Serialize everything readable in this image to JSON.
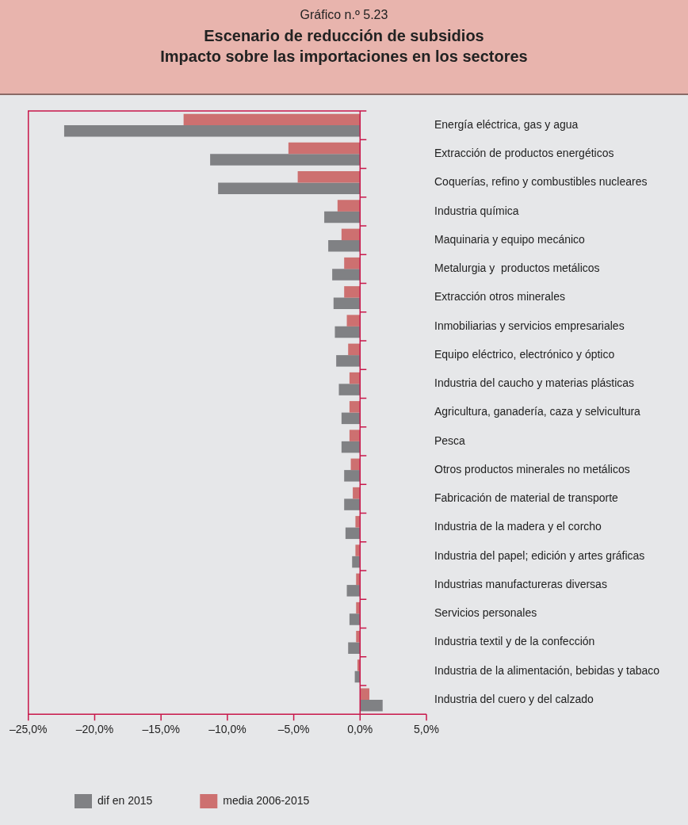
{
  "chart_data": {
    "type": "bar",
    "orientation": "horizontal",
    "subtitle": "Gráfico n.º 5.23",
    "title": "Escenario de reducción de subsidios\nImpacto sobre las importaciones en los sectores",
    "categories": [
      "Energía eléctrica, gas y agua",
      "Extracción de productos energéticos",
      "Coquerías, refino y combustibles nucleares",
      "Industria química",
      "Maquinaria y equipo mecánico",
      "Metalurgia y  productos metálicos",
      "Extracción otros minerales",
      "Inmobiliarias y servicios empresariales",
      "Equipo eléctrico, electrónico y óptico",
      "Industria del caucho y materias plásticas",
      "Agricultura, ganadería, caza y selvicultura",
      "Pesca",
      "Otros productos minerales no metálicos",
      "Fabricación de material de transporte",
      "Industria de la madera y el corcho",
      "Industria del papel; edición y artes gráficas",
      "Industrias manufactureras diversas",
      "Servicios personales",
      "Industria textil y de la confección",
      "Industria de la alimentación, bebidas y tabaco",
      "Industria del cuero y del calzado"
    ],
    "series": [
      {
        "name": "dif en 2015",
        "color": "#808184",
        "values": [
          -22.3,
          -11.3,
          -10.7,
          -2.7,
          -2.4,
          -2.1,
          -2.0,
          -1.9,
          -1.8,
          -1.6,
          -1.4,
          -1.4,
          -1.2,
          -1.2,
          -1.1,
          -0.6,
          -1.0,
          -0.8,
          -0.9,
          -0.4,
          1.7
        ]
      },
      {
        "name": "media 2006-2015",
        "color": "#cd7070",
        "values": [
          -13.3,
          -5.4,
          -4.7,
          -1.7,
          -1.4,
          -1.2,
          -1.2,
          -1.0,
          -0.9,
          -0.8,
          -0.8,
          -0.8,
          -0.7,
          -0.55,
          -0.35,
          -0.35,
          -0.3,
          -0.3,
          -0.3,
          -0.2,
          0.7
        ]
      }
    ],
    "xlim": [
      -25,
      5
    ],
    "xticks": [
      {
        "value": -25,
        "label": "–25,0%"
      },
      {
        "value": -20,
        "label": "–20,0%"
      },
      {
        "value": -15,
        "label": "–15,0%"
      },
      {
        "value": -10,
        "label": "–10,0%"
      },
      {
        "value": -5,
        "label": "–5,0%"
      },
      {
        "value": 0,
        "label": "0,0%"
      },
      {
        "value": 5,
        "label": "5,0%"
      }
    ],
    "legend": "bottom left"
  }
}
